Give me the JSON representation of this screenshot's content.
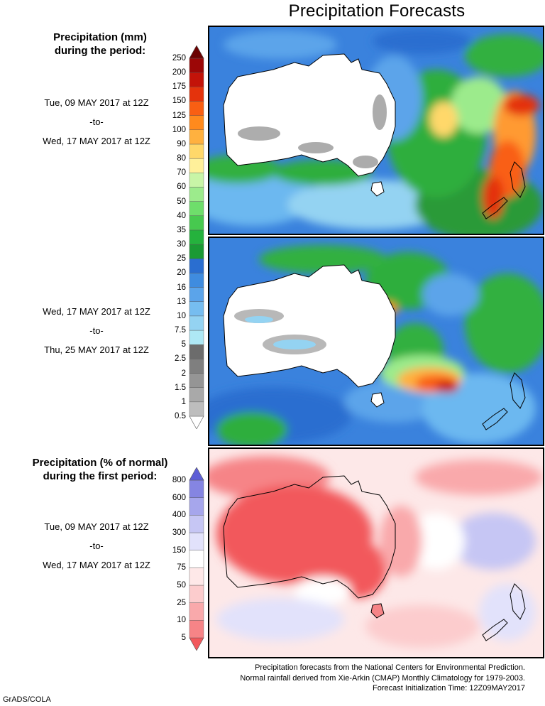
{
  "title": "Precipitation Forecasts",
  "precip_legend": {
    "heading_line1": "Precipitation (mm)",
    "heading_line2": "during the period:",
    "levels": [
      "0.5",
      "1",
      "1.5",
      "2",
      "2.5",
      "5",
      "7.5",
      "10",
      "13",
      "16",
      "20",
      "25",
      "30",
      "35",
      "40",
      "50",
      "60",
      "70",
      "80",
      "90",
      "100",
      "125",
      "150",
      "175",
      "200",
      "250"
    ],
    "colors": [
      "#ffffff",
      "#bdbdbd",
      "#a9a9a9",
      "#959595",
      "#7f7f7f",
      "#6c6c6c",
      "#aee8f5",
      "#94d3f2",
      "#76bdf0",
      "#5ba4ea",
      "#3f8cdf",
      "#2a6ed0",
      "#1b9a34",
      "#25b23d",
      "#47c94f",
      "#6ede6b",
      "#9ceb8c",
      "#c8f5a7",
      "#fff09a",
      "#ffd86a",
      "#ffb13f",
      "#ff8a1d",
      "#f95f13",
      "#e4330c",
      "#c31309",
      "#9c0707",
      "#6b0202"
    ]
  },
  "period1": {
    "from": "Tue, 09 MAY 2017 at 12Z",
    "sep": "-to-",
    "to": "Wed, 17 MAY 2017 at 12Z"
  },
  "period2": {
    "from": "Wed, 17 MAY 2017 at 12Z",
    "sep": "-to-",
    "to": "Thu, 25 MAY 2017 at 12Z"
  },
  "pct_legend": {
    "heading_line1": "Precipitation (% of normal)",
    "heading_line2": "during the first period:",
    "levels": [
      "5",
      "10",
      "25",
      "50",
      "75",
      "150",
      "300",
      "400",
      "600",
      "800"
    ],
    "colors": [
      "#f2585c",
      "#f68487",
      "#f9a9ab",
      "#fccccd",
      "#fee8e8",
      "#ffffff",
      "#e2e2fb",
      "#c6c6f4",
      "#a6a6ec",
      "#8585e2",
      "#5e5ed6"
    ]
  },
  "pct_period": {
    "from": "Tue, 09 MAY 2017 at 12Z",
    "sep": "-to-",
    "to": "Wed, 17 MAY 2017 at 12Z"
  },
  "footer": {
    "line1": "Precipitation forecasts from the National Centers for Environmental Prediction.",
    "line2": "Normal rainfall derived from Xie-Arkin (CMAP) Monthly Climatology for 1979-2003.",
    "line3": "Forecast Initialization Time: 12Z09MAY2017"
  },
  "credit": "GrADS/COLA"
}
